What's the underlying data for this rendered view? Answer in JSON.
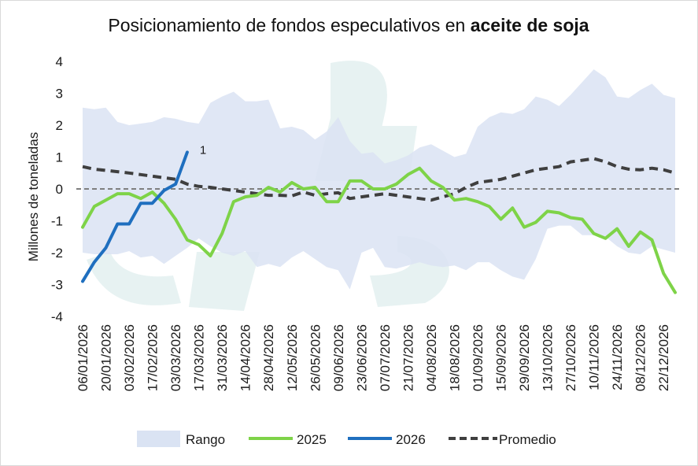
{
  "chart_data": {
    "type": "line",
    "title": "Posicionamiento de fondos especulativos en",
    "title_bold": "aceite de soja",
    "ylabel": "Millones de toneladas",
    "xlabel": "",
    "ylim": [
      -4,
      4
    ],
    "yticks": [
      4,
      3,
      2,
      1,
      0,
      -1,
      -2,
      -3,
      -4
    ],
    "x_tick_labels": [
      "06/01/2026",
      "20/01/2026",
      "03/02/2026",
      "17/02/2026",
      "03/03/2026",
      "17/03/2026",
      "31/03/2026",
      "14/04/2026",
      "28/04/2026",
      "12/05/2026",
      "26/05/2026",
      "09/06/2026",
      "23/06/2026",
      "07/07/2026",
      "21/07/2026",
      "04/08/2026",
      "18/08/2026",
      "01/09/2026",
      "15/09/2026",
      "29/09/2026",
      "13/10/2026",
      "27/10/2026",
      "10/11/2026",
      "24/11/2026",
      "08/12/2026",
      "22/12/2026"
    ],
    "n_weeks": 52,
    "range": {
      "name": "Rango",
      "color": "#dae3f3",
      "upper": [
        2.55,
        2.5,
        2.55,
        2.1,
        2.0,
        2.05,
        2.1,
        2.25,
        2.2,
        2.1,
        2.05,
        2.7,
        2.9,
        3.05,
        2.75,
        2.75,
        2.8,
        1.9,
        1.95,
        1.85,
        1.55,
        1.8,
        2.25,
        1.5,
        1.1,
        1.15,
        0.8,
        0.9,
        1.05,
        1.3,
        1.4,
        1.2,
        1.0,
        1.1,
        1.95,
        2.25,
        2.4,
        2.35,
        2.5,
        2.9,
        2.8,
        2.6,
        2.95,
        3.35,
        3.75,
        3.5,
        2.9,
        2.85,
        3.1,
        3.3,
        2.95,
        2.85
      ],
      "lower": [
        -2.0,
        -2.05,
        -2.05,
        -2.05,
        -1.95,
        -2.15,
        -2.1,
        -2.35,
        -2.1,
        -1.85,
        -1.55,
        -1.8,
        -2.0,
        -2.1,
        -1.95,
        -2.45,
        -2.35,
        -2.45,
        -2.15,
        -1.95,
        -2.2,
        -2.45,
        -2.55,
        -3.15,
        -2.0,
        -1.85,
        -2.45,
        -2.5,
        -2.4,
        -2.3,
        -2.4,
        -2.45,
        -2.4,
        -2.55,
        -2.3,
        -2.3,
        -2.55,
        -2.75,
        -2.85,
        -2.2,
        -1.25,
        -1.15,
        -1.15,
        -1.45,
        -1.45,
        -1.5,
        -1.8,
        -2.0,
        -2.05,
        -1.8,
        -1.9,
        -2.0
      ]
    },
    "series": [
      {
        "name": "2025",
        "color": "#7ed348",
        "values": [
          -1.2,
          -0.55,
          -0.35,
          -0.15,
          -0.15,
          -0.3,
          -0.1,
          -0.45,
          -0.95,
          -1.6,
          -1.75,
          -2.1,
          -1.4,
          -0.4,
          -0.25,
          -0.2,
          0.05,
          -0.1,
          0.2,
          0.0,
          0.05,
          -0.4,
          -0.4,
          0.25,
          0.25,
          0.0,
          0.0,
          0.15,
          0.45,
          0.65,
          0.25,
          0.05,
          -0.35,
          -0.3,
          -0.4,
          -0.55,
          -0.95,
          -0.6,
          -1.2,
          -1.05,
          -0.7,
          -0.75,
          -0.9,
          -0.95,
          -1.4,
          -1.55,
          -1.25,
          -1.8,
          -1.35,
          -1.6,
          -2.65,
          -3.25
        ]
      },
      {
        "name": "2026",
        "color": "#1f6fbf",
        "values": [
          -2.9,
          -2.3,
          -1.85,
          -1.1,
          -1.1,
          -0.45,
          -0.45,
          -0.05,
          0.15,
          1.15
        ]
      },
      {
        "name": "Promedio",
        "color": "#3f3f3f",
        "dashed": true,
        "values": [
          0.7,
          0.62,
          0.58,
          0.54,
          0.5,
          0.45,
          0.4,
          0.35,
          0.3,
          0.15,
          0.08,
          0.05,
          0.0,
          -0.05,
          -0.1,
          -0.15,
          -0.2,
          -0.2,
          -0.22,
          -0.1,
          -0.2,
          -0.15,
          -0.12,
          -0.3,
          -0.25,
          -0.2,
          -0.15,
          -0.2,
          -0.25,
          -0.3,
          -0.35,
          -0.25,
          -0.15,
          0.05,
          0.2,
          0.25,
          0.3,
          0.4,
          0.5,
          0.6,
          0.65,
          0.7,
          0.85,
          0.9,
          0.95,
          0.85,
          0.7,
          0.62,
          0.6,
          0.65,
          0.6,
          0.5
        ]
      }
    ],
    "annotation": {
      "text": "1",
      "x_index": 9,
      "y": 1.15
    },
    "zero_line": {
      "value": 0,
      "style": "dashed",
      "color": "#7f7f7f"
    },
    "legend": {
      "position": "bottom",
      "items": [
        "Rango",
        "2025",
        "2026",
        "Promedio"
      ]
    },
    "grid": false
  }
}
